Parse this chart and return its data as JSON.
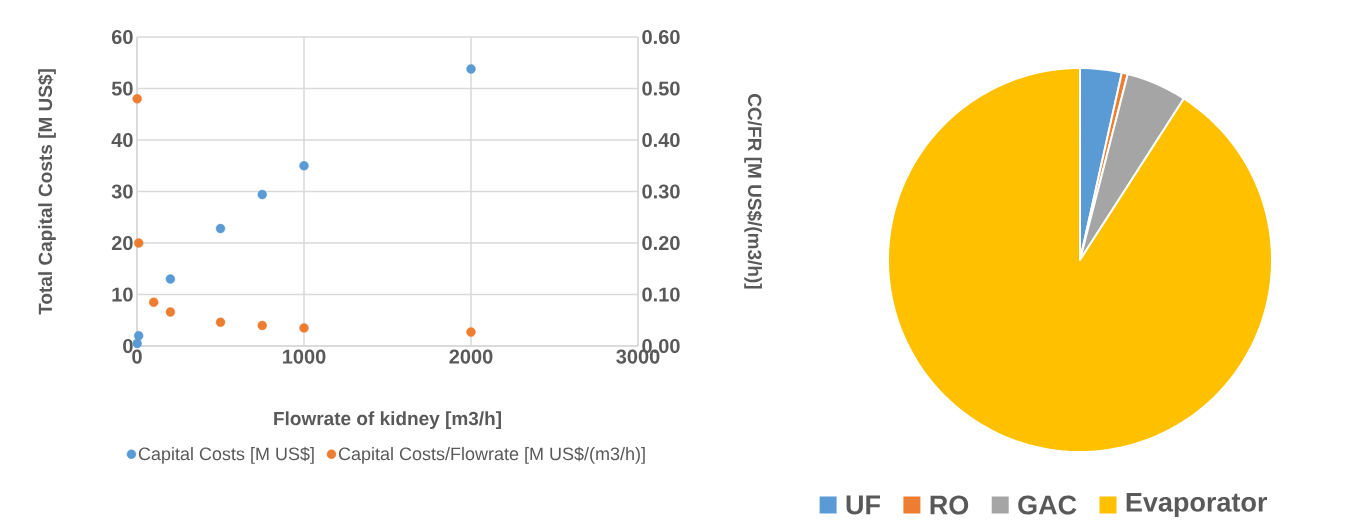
{
  "chart_data": [
    {
      "type": "scatter",
      "xlabel": "Flowrate of kidney [m3/h]",
      "ylabel": "Total Capital Costs [M US$]",
      "y2label": "CC/FR [M US$/(m3/h)]",
      "xlim": [
        0,
        3000
      ],
      "xticks": [
        0,
        1000,
        2000,
        3000
      ],
      "ylim": [
        0,
        60
      ],
      "yticks": [
        0,
        10,
        20,
        30,
        40,
        50,
        60
      ],
      "y2lim": [
        0,
        0.6
      ],
      "y2ticks": [
        {
          "value": 0,
          "label": "0.00"
        },
        {
          "value": 0.1,
          "label": "0.10"
        },
        {
          "value": 0.2,
          "label": "0.20"
        },
        {
          "value": 0.3,
          "label": "0.30"
        },
        {
          "value": 0.4,
          "label": "0.40"
        },
        {
          "value": 0.5,
          "label": "0.50"
        },
        {
          "value": 0.6,
          "label": "0.60"
        }
      ],
      "grid": true,
      "legend": "bottom",
      "marker": "circle",
      "series": [
        {
          "name": "Capital Costs [M US$]",
          "color": "#5b9bd5",
          "x": [
            1,
            10,
            200,
            500,
            750,
            1000,
            2000
          ],
          "values": [
            0.5,
            2,
            13,
            22.8,
            29.4,
            35,
            53.8
          ]
        },
        {
          "name": "Capital Costs/Flowrate [M US$/(m3/h)]",
          "color": "#ed7d31",
          "axis": "y2",
          "x": [
            1,
            10,
            100,
            200,
            500,
            750,
            1000,
            2000
          ],
          "values": [
            0.48,
            0.2,
            0.085,
            0.066,
            0.046,
            0.04,
            0.035,
            0.027
          ]
        }
      ]
    },
    {
      "type": "pie",
      "categories": [
        "UF",
        "RO",
        "GAC",
        "Evaporator"
      ],
      "values": [
        3.5,
        0.5,
        5.1,
        90.9
      ],
      "colors": [
        "#5b9bd5",
        "#ed7d31",
        "#a5a5a5",
        "#ffc000"
      ],
      "legend": "bottom"
    }
  ]
}
